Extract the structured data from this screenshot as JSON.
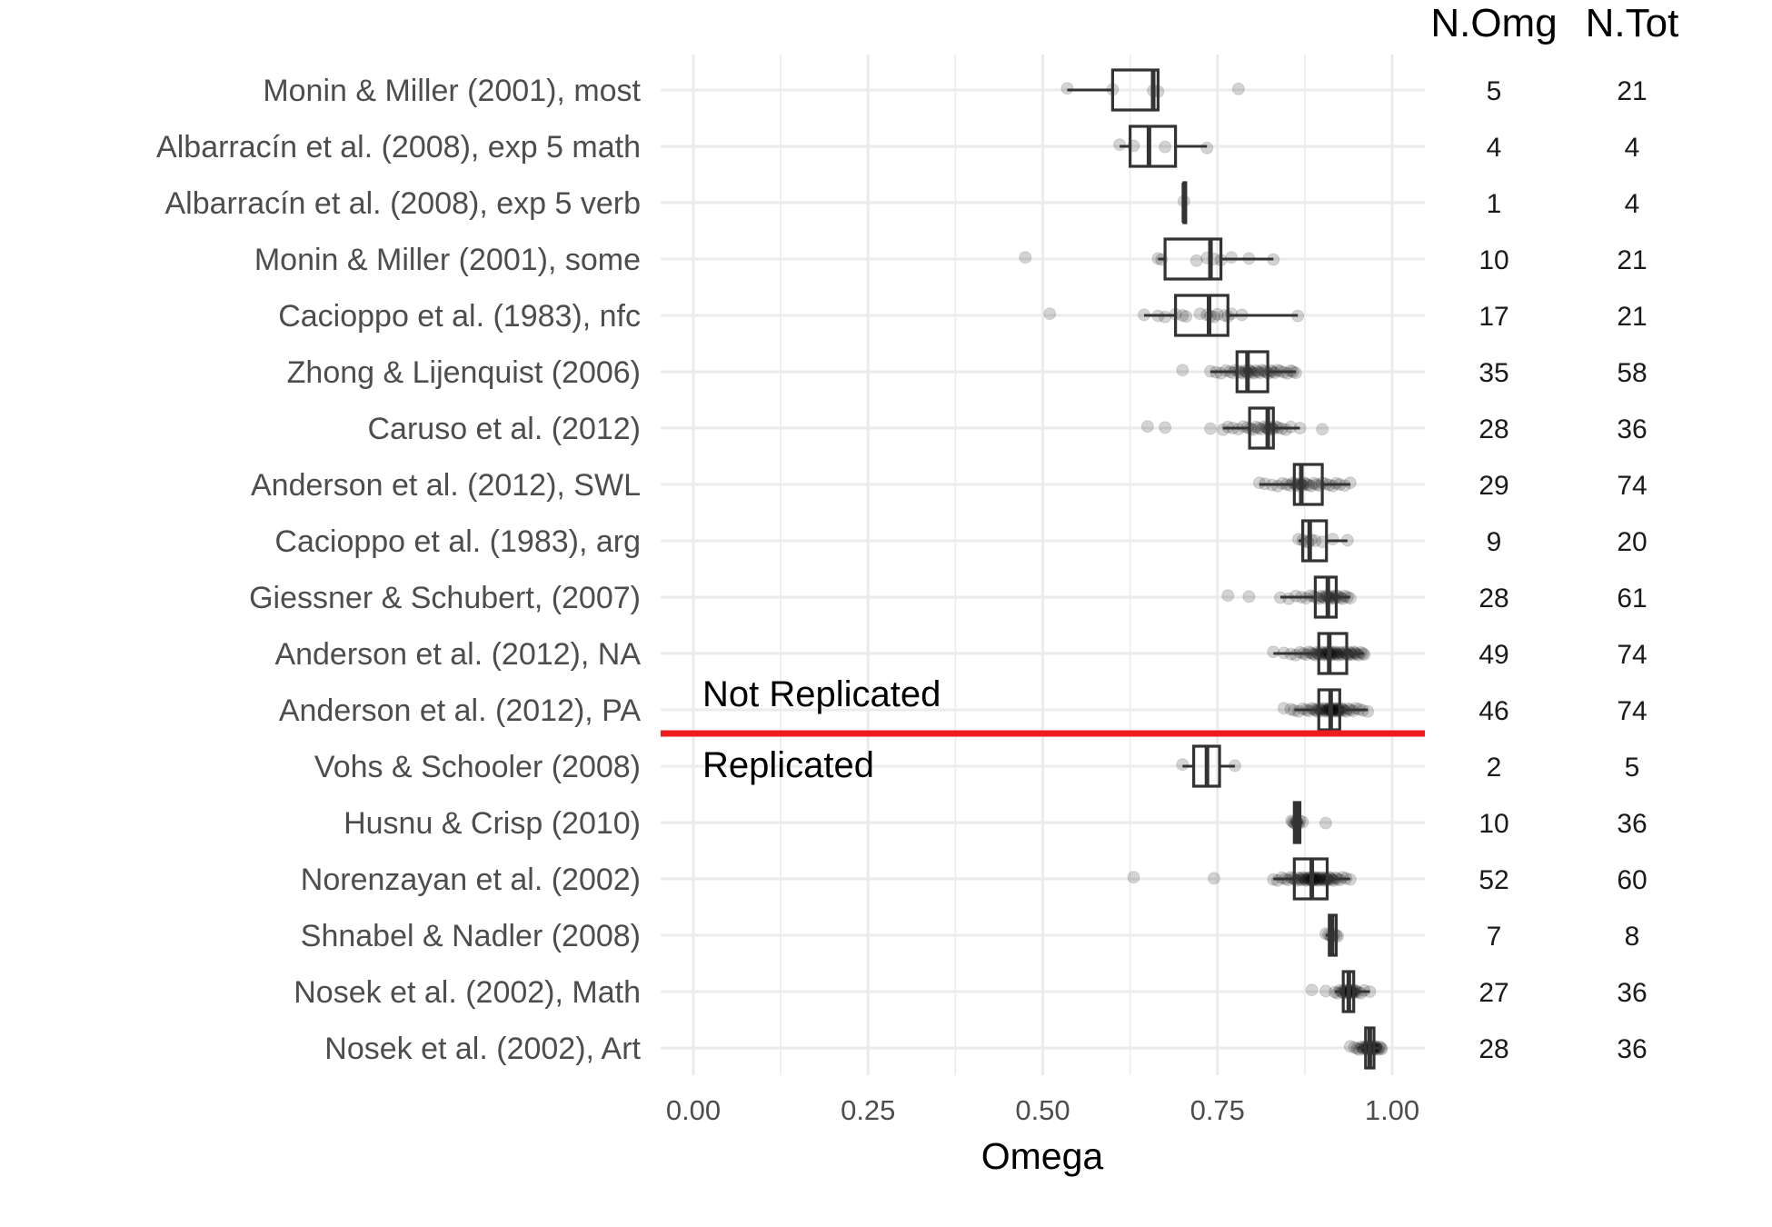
{
  "chart_data": {
    "type": "boxplot",
    "xlabel": "Omega",
    "xlim": [
      -0.05,
      1.05
    ],
    "x_ticks": [
      {
        "value": 0,
        "label": "0.00"
      },
      {
        "value": 0.25,
        "label": "0.25"
      },
      {
        "value": 0.5,
        "label": "0.50"
      },
      {
        "value": 0.75,
        "label": "0.75"
      },
      {
        "value": 1.0,
        "label": "1.00"
      }
    ],
    "column_headers": {
      "n_omg": "N.Omg",
      "n_tot": "N.Tot"
    },
    "divider": {
      "color": "#ee1c1c",
      "label_above": "Not Replicated",
      "label_below": "Replicated"
    },
    "studies": [
      {
        "name": "Monin & Miller (2001), most",
        "n_omg": "5",
        "n_tot": "21",
        "box": {
          "q1": 0.6,
          "median": 0.658,
          "q3": 0.665,
          "lo": 0.535,
          "hi": 0.665
        },
        "points": [
          0.535,
          0.6,
          0.658,
          0.665,
          0.78
        ]
      },
      {
        "name": "Albarracín et al. (2008), exp 5 math",
        "n_omg": "4",
        "n_tot": "4",
        "box": {
          "q1": 0.625,
          "median": 0.652,
          "q3": 0.69,
          "lo": 0.61,
          "hi": 0.735
        },
        "points": [
          0.61,
          0.63,
          0.675,
          0.735
        ]
      },
      {
        "name": "Albarracín et al. (2008), exp 5 verb",
        "n_omg": "1",
        "n_tot": "4",
        "box": {
          "q1": 0.702,
          "median": 0.702,
          "q3": 0.702,
          "lo": 0.702,
          "hi": 0.702
        },
        "points": [
          0.702
        ]
      },
      {
        "name": "Monin & Miller (2001), some",
        "n_omg": "10",
        "n_tot": "21",
        "box": {
          "q1": 0.675,
          "median": 0.74,
          "q3": 0.755,
          "lo": 0.665,
          "hi": 0.83
        },
        "points": [
          0.475,
          0.665,
          0.67,
          0.72,
          0.735,
          0.745,
          0.755,
          0.77,
          0.795,
          0.83
        ]
      },
      {
        "name": "Cacioppo et al. (1983), nfc",
        "n_omg": "17",
        "n_tot": "21",
        "box": {
          "q1": 0.69,
          "median": 0.738,
          "q3": 0.765,
          "lo": 0.645,
          "hi": 0.865
        },
        "points": [
          0.51,
          0.645,
          0.665,
          0.675,
          0.69,
          0.7,
          0.705,
          0.725,
          0.735,
          0.74,
          0.745,
          0.75,
          0.76,
          0.765,
          0.77,
          0.785,
          0.865
        ]
      },
      {
        "name": "Zhong & Lijenquist (2006)",
        "n_omg": "35",
        "n_tot": "58",
        "box": {
          "q1": 0.778,
          "median": 0.793,
          "q3": 0.822,
          "lo": 0.74,
          "hi": 0.862
        },
        "points": [
          0.7,
          0.74,
          0.748,
          0.755,
          0.762,
          0.768,
          0.772,
          0.776,
          0.78,
          0.783,
          0.786,
          0.789,
          0.791,
          0.793,
          0.795,
          0.797,
          0.799,
          0.802,
          0.805,
          0.808,
          0.811,
          0.814,
          0.817,
          0.82,
          0.823,
          0.826,
          0.829,
          0.832,
          0.836,
          0.84,
          0.845,
          0.85,
          0.855,
          0.858,
          0.862
        ]
      },
      {
        "name": "Caruso et al. (2012)",
        "n_omg": "28",
        "n_tot": "36",
        "box": {
          "q1": 0.796,
          "median": 0.822,
          "q3": 0.83,
          "lo": 0.758,
          "hi": 0.868
        },
        "points": [
          0.65,
          0.675,
          0.74,
          0.758,
          0.765,
          0.772,
          0.78,
          0.787,
          0.793,
          0.797,
          0.801,
          0.805,
          0.809,
          0.813,
          0.817,
          0.82,
          0.822,
          0.824,
          0.826,
          0.828,
          0.83,
          0.833,
          0.837,
          0.842,
          0.848,
          0.855,
          0.868,
          0.9
        ]
      },
      {
        "name": "Anderson et al. (2012), SWL",
        "n_omg": "29",
        "n_tot": "74",
        "box": {
          "q1": 0.86,
          "median": 0.87,
          "q3": 0.9,
          "lo": 0.81,
          "hi": 0.94
        },
        "points": [
          0.81,
          0.818,
          0.828,
          0.836,
          0.843,
          0.849,
          0.854,
          0.858,
          0.861,
          0.864,
          0.866,
          0.868,
          0.87,
          0.872,
          0.874,
          0.877,
          0.88,
          0.884,
          0.888,
          0.892,
          0.896,
          0.9,
          0.905,
          0.91,
          0.915,
          0.92,
          0.925,
          0.932,
          0.94
        ]
      },
      {
        "name": "Cacioppo et al. (1983), arg",
        "n_omg": "9",
        "n_tot": "20",
        "box": {
          "q1": 0.872,
          "median": 0.882,
          "q3": 0.906,
          "lo": 0.866,
          "hi": 0.936
        },
        "points": [
          0.866,
          0.872,
          0.876,
          0.88,
          0.884,
          0.89,
          0.9,
          0.915,
          0.936
        ]
      },
      {
        "name": "Giessner & Schubert, (2007)",
        "n_omg": "28",
        "n_tot": "61",
        "box": {
          "q1": 0.89,
          "median": 0.908,
          "q3": 0.92,
          "lo": 0.84,
          "hi": 0.94
        },
        "points": [
          0.765,
          0.795,
          0.84,
          0.852,
          0.862,
          0.87,
          0.877,
          0.883,
          0.888,
          0.892,
          0.895,
          0.898,
          0.901,
          0.904,
          0.906,
          0.908,
          0.91,
          0.912,
          0.914,
          0.916,
          0.918,
          0.92,
          0.923,
          0.926,
          0.929,
          0.932,
          0.936,
          0.94
        ]
      },
      {
        "name": "Anderson et al. (2012), NA",
        "n_omg": "49",
        "n_tot": "74",
        "box": {
          "q1": 0.895,
          "median": 0.91,
          "q3": 0.935,
          "lo": 0.83,
          "hi": 0.96
        },
        "points": [
          0.83,
          0.845,
          0.855,
          0.862,
          0.868,
          0.873,
          0.877,
          0.881,
          0.884,
          0.887,
          0.89,
          0.892,
          0.894,
          0.896,
          0.898,
          0.9,
          0.902,
          0.903,
          0.905,
          0.906,
          0.908,
          0.909,
          0.91,
          0.911,
          0.912,
          0.914,
          0.915,
          0.917,
          0.918,
          0.92,
          0.921,
          0.923,
          0.925,
          0.927,
          0.929,
          0.931,
          0.933,
          0.935,
          0.937,
          0.939,
          0.941,
          0.943,
          0.945,
          0.947,
          0.949,
          0.952,
          0.955,
          0.958,
          0.96
        ]
      },
      {
        "name": "Anderson et al. (2012), PA",
        "n_omg": "46",
        "n_tot": "74",
        "box": {
          "q1": 0.895,
          "median": 0.912,
          "q3": 0.925,
          "lo": 0.86,
          "hi": 0.965
        },
        "points": [
          0.845,
          0.855,
          0.86,
          0.866,
          0.872,
          0.877,
          0.881,
          0.885,
          0.888,
          0.891,
          0.893,
          0.895,
          0.897,
          0.899,
          0.901,
          0.903,
          0.905,
          0.906,
          0.908,
          0.909,
          0.91,
          0.911,
          0.912,
          0.913,
          0.914,
          0.915,
          0.917,
          0.918,
          0.919,
          0.92,
          0.921,
          0.922,
          0.923,
          0.924,
          0.925,
          0.927,
          0.929,
          0.931,
          0.934,
          0.937,
          0.94,
          0.944,
          0.948,
          0.953,
          0.958,
          0.965
        ]
      },
      {
        "name": "Vohs & Schooler (2008)",
        "n_omg": "2",
        "n_tot": "5",
        "box": {
          "q1": 0.716,
          "median": 0.735,
          "q3": 0.753,
          "lo": 0.7,
          "hi": 0.775
        },
        "points": [
          0.7,
          0.775
        ]
      },
      {
        "name": "Husnu & Crisp (2010)",
        "n_omg": "10",
        "n_tot": "36",
        "box": {
          "q1": 0.86,
          "median": 0.864,
          "q3": 0.868,
          "lo": 0.856,
          "hi": 0.872
        },
        "points": [
          0.856,
          0.858,
          0.86,
          0.862,
          0.863,
          0.864,
          0.866,
          0.868,
          0.872,
          0.905
        ]
      },
      {
        "name": "Norenzayan et al. (2002)",
        "n_omg": "52",
        "n_tot": "60",
        "box": {
          "q1": 0.86,
          "median": 0.885,
          "q3": 0.907,
          "lo": 0.83,
          "hi": 0.94
        },
        "points": [
          0.63,
          0.745,
          0.83,
          0.836,
          0.842,
          0.847,
          0.851,
          0.855,
          0.858,
          0.861,
          0.864,
          0.866,
          0.868,
          0.87,
          0.872,
          0.874,
          0.876,
          0.877,
          0.879,
          0.88,
          0.882,
          0.883,
          0.884,
          0.885,
          0.886,
          0.887,
          0.888,
          0.889,
          0.89,
          0.891,
          0.892,
          0.894,
          0.895,
          0.896,
          0.898,
          0.899,
          0.901,
          0.902,
          0.904,
          0.905,
          0.907,
          0.908,
          0.91,
          0.912,
          0.914,
          0.916,
          0.919,
          0.922,
          0.925,
          0.929,
          0.934,
          0.94
        ]
      },
      {
        "name": "Shnabel & Nadler (2008)",
        "n_omg": "7",
        "n_tot": "8",
        "box": {
          "q1": 0.91,
          "median": 0.914,
          "q3": 0.92,
          "lo": 0.905,
          "hi": 0.922
        },
        "points": [
          0.905,
          0.909,
          0.912,
          0.914,
          0.917,
          0.92,
          0.922
        ]
      },
      {
        "name": "Nosek et al. (2002), Math",
        "n_omg": "27",
        "n_tot": "36",
        "box": {
          "q1": 0.93,
          "median": 0.938,
          "q3": 0.945,
          "lo": 0.918,
          "hi": 0.968
        },
        "points": [
          0.885,
          0.905,
          0.918,
          0.922,
          0.925,
          0.928,
          0.93,
          0.932,
          0.933,
          0.934,
          0.935,
          0.936,
          0.937,
          0.938,
          0.939,
          0.94,
          0.941,
          0.942,
          0.943,
          0.944,
          0.945,
          0.946,
          0.948,
          0.951,
          0.955,
          0.96,
          0.968
        ]
      },
      {
        "name": "Nosek et al. (2002), Art",
        "n_omg": "28",
        "n_tot": "36",
        "box": {
          "q1": 0.962,
          "median": 0.968,
          "q3": 0.974,
          "lo": 0.95,
          "hi": 0.985
        },
        "points": [
          0.94,
          0.946,
          0.95,
          0.953,
          0.956,
          0.958,
          0.96,
          0.962,
          0.963,
          0.964,
          0.965,
          0.966,
          0.967,
          0.968,
          0.969,
          0.97,
          0.971,
          0.972,
          0.973,
          0.974,
          0.975,
          0.976,
          0.977,
          0.978,
          0.98,
          0.982,
          0.984,
          0.985
        ]
      }
    ]
  }
}
